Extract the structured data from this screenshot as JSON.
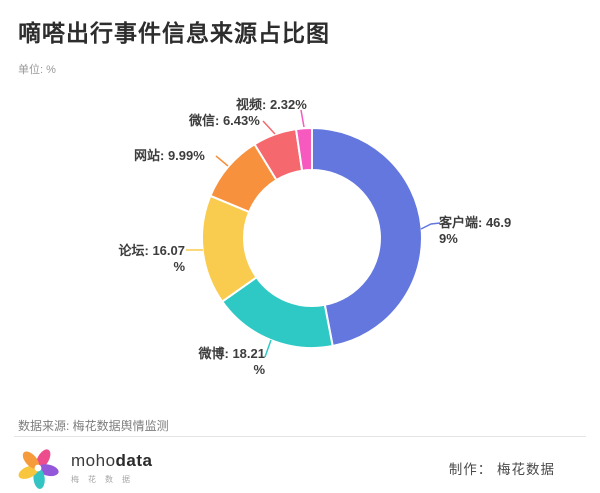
{
  "header": {
    "title": "嘀嗒出行事件信息来源占比图",
    "unit": "单位: %"
  },
  "chart_data": {
    "type": "pie",
    "donut": true,
    "title": "嘀嗒出行事件信息来源占比图",
    "unit": "%",
    "start_angle_deg": 0,
    "direction": "clockwise",
    "legend": "none",
    "series": [
      {
        "name": "客户端",
        "value": 46.99,
        "color": "#6377DE",
        "label_lines": [
          "客户端: 46.9",
          "9%"
        ]
      },
      {
        "name": "微博",
        "value": 18.21,
        "color": "#2FC9C5",
        "label_lines": [
          "微博: 18.21",
          "%"
        ]
      },
      {
        "name": "论坛",
        "value": 16.07,
        "color": "#F9CB4E",
        "label_lines": [
          "论坛: 16.07",
          "%"
        ]
      },
      {
        "name": "网站",
        "value": 9.99,
        "color": "#F7913E",
        "label_lines": [
          "网站: 9.99%"
        ]
      },
      {
        "name": "微信",
        "value": 6.43,
        "color": "#F5696E",
        "label_lines": [
          "微信: 6.43%"
        ]
      },
      {
        "name": "视频",
        "value": 2.32,
        "color": "#F65ABF",
        "label_lines": [
          "视频: 2.32%"
        ]
      }
    ]
  },
  "footer": {
    "source": "数据来源: 梅花数据舆情监测",
    "logo": {
      "brand_regular": "moho",
      "brand_bold": "data",
      "brand_sub": "梅花数据"
    },
    "credit": "制作： 梅花数据"
  }
}
